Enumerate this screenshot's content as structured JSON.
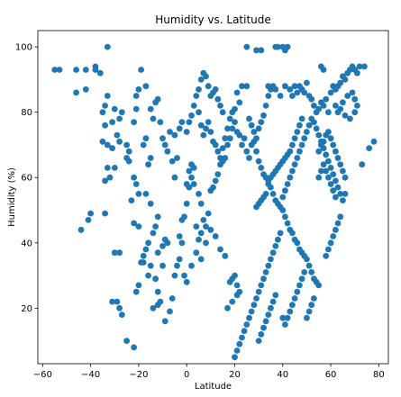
{
  "chart_data": {
    "type": "scatter",
    "title": "Humidity vs. Latitude",
    "xlabel": "Latitude",
    "ylabel": "Humidity (%)",
    "xlim": [
      -62,
      84
    ],
    "ylim": [
      3,
      105
    ],
    "xticks": [
      -60,
      -40,
      -20,
      0,
      20,
      40,
      60,
      80
    ],
    "yticks": [
      20,
      40,
      60,
      80,
      100
    ],
    "grid": false,
    "legend": "none",
    "marker_color": "#1f77b4",
    "points": [
      [
        -55,
        93
      ],
      [
        -53,
        93
      ],
      [
        -46,
        93
      ],
      [
        -42,
        93
      ],
      [
        -38,
        94
      ],
      [
        -38,
        93
      ],
      [
        -36,
        92
      ],
      [
        -33,
        100
      ],
      [
        -46,
        86
      ],
      [
        -42,
        87
      ],
      [
        -35,
        80
      ],
      [
        -34,
        82
      ],
      [
        -33,
        85
      ],
      [
        -34,
        76
      ],
      [
        -35,
        71
      ],
      [
        -33,
        70
      ],
      [
        -31,
        69
      ],
      [
        -32,
        60
      ],
      [
        -34,
        59
      ],
      [
        -33,
        63
      ],
      [
        -30,
        63
      ],
      [
        -29,
        73
      ],
      [
        -28,
        71
      ],
      [
        -28,
        78
      ],
      [
        -31,
        77
      ],
      [
        -30,
        81
      ],
      [
        -27,
        80
      ],
      [
        -25,
        70
      ],
      [
        -24,
        68
      ],
      [
        -22,
        77
      ],
      [
        -21,
        81
      ],
      [
        -20,
        87
      ],
      [
        -21,
        85
      ],
      [
        -19,
        93
      ],
      [
        -17,
        88
      ],
      [
        -15,
        81
      ],
      [
        -14,
        78
      ],
      [
        -13,
        83
      ],
      [
        -12,
        84
      ],
      [
        -11,
        77
      ],
      [
        -10,
        72
      ],
      [
        -9,
        70
      ],
      [
        -8,
        68
      ],
      [
        -7,
        74
      ],
      [
        -5,
        73
      ],
      [
        -3,
        75
      ],
      [
        -2,
        77
      ],
      [
        -4,
        66
      ],
      [
        -6,
        65
      ],
      [
        -5,
        60
      ],
      [
        -22,
        60
      ],
      [
        -21,
        58
      ],
      [
        -20,
        55
      ],
      [
        -23,
        53
      ],
      [
        -22,
        46
      ],
      [
        -20,
        45
      ],
      [
        -24,
        65
      ],
      [
        -25,
        66
      ],
      [
        -18,
        70
      ],
      [
        -17,
        72
      ],
      [
        -15,
        66
      ],
      [
        -16,
        64
      ],
      [
        -44,
        44
      ],
      [
        -41,
        47
      ],
      [
        -40,
        49
      ],
      [
        -34,
        49
      ],
      [
        -30,
        37
      ],
      [
        -28,
        37
      ],
      [
        -31,
        22
      ],
      [
        -29,
        22
      ],
      [
        -28,
        20
      ],
      [
        -27,
        18
      ],
      [
        -25,
        10
      ],
      [
        -22,
        8
      ],
      [
        -21,
        25
      ],
      [
        -20,
        27
      ],
      [
        -19,
        34
      ],
      [
        -18,
        36
      ],
      [
        -17,
        38
      ],
      [
        -16,
        30
      ],
      [
        -15,
        33
      ],
      [
        -13,
        29
      ],
      [
        -12,
        25
      ],
      [
        -14,
        20
      ],
      [
        -12,
        21
      ],
      [
        -11,
        22
      ],
      [
        -9,
        16
      ],
      [
        -7,
        19
      ],
      [
        -6,
        23
      ],
      [
        -5,
        30
      ],
      [
        -4,
        33
      ],
      [
        -3,
        35
      ],
      [
        -2,
        40
      ],
      [
        -3,
        42
      ],
      [
        -12,
        37
      ],
      [
        -10,
        39
      ],
      [
        -9,
        41
      ],
      [
        -8,
        40
      ],
      [
        -10,
        33
      ],
      [
        -13,
        45
      ],
      [
        -12,
        48
      ],
      [
        -14,
        43
      ],
      [
        -16,
        40
      ],
      [
        -18,
        34
      ],
      [
        -15,
        52
      ],
      [
        -17,
        55
      ],
      [
        -2,
        47
      ],
      [
        -1,
        48
      ],
      [
        0,
        52
      ],
      [
        1,
        57
      ],
      [
        0,
        58
      ],
      [
        2,
        60
      ],
      [
        3,
        63
      ],
      [
        2,
        64
      ],
      [
        1,
        62
      ],
      [
        3,
        58
      ],
      [
        5,
        55
      ],
      [
        6,
        52
      ],
      [
        7,
        47
      ],
      [
        8,
        45
      ],
      [
        4,
        45
      ],
      [
        5,
        41
      ],
      [
        6,
        43
      ],
      [
        9,
        49
      ],
      [
        10,
        56
      ],
      [
        11,
        57
      ],
      [
        12,
        59
      ],
      [
        13,
        61
      ],
      [
        14,
        64
      ],
      [
        15,
        65
      ],
      [
        16,
        66
      ],
      [
        17,
        70
      ],
      [
        18,
        72
      ],
      [
        19,
        75
      ],
      [
        20,
        77
      ],
      [
        21,
        74
      ],
      [
        22,
        73
      ],
      [
        23,
        70
      ],
      [
        24,
        72
      ],
      [
        25,
        68
      ],
      [
        26,
        66
      ],
      [
        27,
        70
      ],
      [
        28,
        71
      ],
      [
        29,
        72
      ],
      [
        30,
        75
      ],
      [
        31,
        77
      ],
      [
        32,
        79
      ],
      [
        33,
        82
      ],
      [
        34,
        85
      ],
      [
        35,
        87
      ],
      [
        36,
        88
      ],
      [
        37,
        100
      ],
      [
        38,
        100
      ],
      [
        40,
        100
      ],
      [
        41,
        99
      ],
      [
        42,
        100
      ],
      [
        25,
        100
      ],
      [
        29,
        99
      ],
      [
        31,
        99
      ],
      [
        34,
        88
      ],
      [
        37,
        87
      ],
      [
        39,
        85
      ],
      [
        41,
        88
      ],
      [
        43,
        87
      ],
      [
        44,
        85
      ],
      [
        45,
        88
      ],
      [
        46,
        86
      ],
      [
        47,
        88
      ],
      [
        48,
        87
      ],
      [
        49,
        86
      ],
      [
        50,
        89
      ],
      [
        51,
        85
      ],
      [
        52,
        84
      ],
      [
        53,
        82
      ],
      [
        54,
        80
      ],
      [
        55,
        81
      ],
      [
        56,
        83
      ],
      [
        57,
        82
      ],
      [
        58,
        84
      ],
      [
        59,
        80
      ],
      [
        60,
        86
      ],
      [
        61,
        88
      ],
      [
        62,
        87
      ],
      [
        63,
        88
      ],
      [
        64,
        89
      ],
      [
        65,
        91
      ],
      [
        66,
        90
      ],
      [
        67,
        92
      ],
      [
        68,
        93
      ],
      [
        69,
        94
      ],
      [
        70,
        93
      ],
      [
        71,
        92
      ],
      [
        72,
        94
      ],
      [
        56,
        94
      ],
      [
        57,
        93
      ],
      [
        74,
        94
      ],
      [
        76,
        69
      ],
      [
        78,
        71
      ],
      [
        73,
        64
      ],
      [
        70,
        84
      ],
      [
        69,
        86
      ],
      [
        67,
        85
      ],
      [
        65,
        83
      ],
      [
        64,
        81
      ],
      [
        63,
        80
      ],
      [
        62,
        82
      ],
      [
        66,
        79
      ],
      [
        68,
        78
      ],
      [
        70,
        80
      ],
      [
        71,
        82
      ],
      [
        0,
        74
      ],
      [
        1,
        77
      ],
      [
        2,
        79
      ],
      [
        3,
        82
      ],
      [
        4,
        85
      ],
      [
        5,
        87
      ],
      [
        6,
        90
      ],
      [
        7,
        92
      ],
      [
        8,
        91
      ],
      [
        9,
        88
      ],
      [
        10,
        85
      ],
      [
        11,
        86
      ],
      [
        12,
        87
      ],
      [
        13,
        84
      ],
      [
        14,
        82
      ],
      [
        15,
        80
      ],
      [
        5,
        80
      ],
      [
        6,
        76
      ],
      [
        7,
        73
      ],
      [
        8,
        75
      ],
      [
        9,
        77
      ],
      [
        10,
        74
      ],
      [
        11,
        71
      ],
      [
        12,
        70
      ],
      [
        13,
        68
      ],
      [
        14,
        66
      ],
      [
        15,
        69
      ],
      [
        16,
        72
      ],
      [
        17,
        75
      ],
      [
        18,
        78
      ],
      [
        19,
        80
      ],
      [
        20,
        81
      ],
      [
        22,
        83
      ],
      [
        21,
        86
      ],
      [
        23,
        88
      ],
      [
        25,
        88
      ],
      [
        26,
        78
      ],
      [
        27,
        76
      ],
      [
        28,
        74
      ],
      [
        29,
        68
      ],
      [
        30,
        65
      ],
      [
        31,
        63
      ],
      [
        32,
        61
      ],
      [
        33,
        60
      ],
      [
        34,
        58
      ],
      [
        35,
        57
      ],
      [
        36,
        55
      ],
      [
        37,
        53
      ],
      [
        38,
        52
      ],
      [
        39,
        51
      ],
      [
        40,
        50
      ],
      [
        41,
        48
      ],
      [
        42,
        46
      ],
      [
        43,
        44
      ],
      [
        44,
        43
      ],
      [
        45,
        41
      ],
      [
        46,
        40
      ],
      [
        47,
        38
      ],
      [
        48,
        37
      ],
      [
        49,
        36
      ],
      [
        50,
        35
      ],
      [
        51,
        33
      ],
      [
        52,
        31
      ],
      [
        53,
        29
      ],
      [
        54,
        28
      ],
      [
        55,
        27
      ],
      [
        40,
        54
      ],
      [
        41,
        56
      ],
      [
        42,
        58
      ],
      [
        43,
        60
      ],
      [
        44,
        62
      ],
      [
        45,
        64
      ],
      [
        46,
        66
      ],
      [
        47,
        68
      ],
      [
        48,
        70
      ],
      [
        49,
        72
      ],
      [
        50,
        74
      ],
      [
        51,
        76
      ],
      [
        52,
        78
      ],
      [
        53,
        77
      ],
      [
        54,
        75
      ],
      [
        55,
        73
      ],
      [
        56,
        71
      ],
      [
        57,
        69
      ],
      [
        58,
        67
      ],
      [
        59,
        65
      ],
      [
        60,
        63
      ],
      [
        61,
        61
      ],
      [
        62,
        59
      ],
      [
        63,
        57
      ],
      [
        64,
        55
      ],
      [
        65,
        53
      ],
      [
        66,
        55
      ],
      [
        64,
        48
      ],
      [
        63,
        46
      ],
      [
        62,
        44
      ],
      [
        61,
        42
      ],
      [
        60,
        40
      ],
      [
        59,
        38
      ],
      [
        58,
        36
      ],
      [
        20,
        5
      ],
      [
        21,
        7
      ],
      [
        22,
        9
      ],
      [
        23,
        11
      ],
      [
        24,
        13
      ],
      [
        25,
        15
      ],
      [
        26,
        17
      ],
      [
        27,
        19
      ],
      [
        28,
        21
      ],
      [
        29,
        23
      ],
      [
        30,
        25
      ],
      [
        31,
        27
      ],
      [
        32,
        29
      ],
      [
        33,
        31
      ],
      [
        34,
        33
      ],
      [
        35,
        35
      ],
      [
        36,
        37
      ],
      [
        37,
        39
      ],
      [
        38,
        41
      ],
      [
        39,
        43
      ],
      [
        40,
        17
      ],
      [
        41,
        15
      ],
      [
        42,
        17
      ],
      [
        43,
        19
      ],
      [
        44,
        21
      ],
      [
        45,
        23
      ],
      [
        46,
        25
      ],
      [
        47,
        27
      ],
      [
        48,
        29
      ],
      [
        49,
        31
      ],
      [
        50,
        17
      ],
      [
        51,
        19
      ],
      [
        52,
        21
      ],
      [
        53,
        23
      ],
      [
        30,
        10
      ],
      [
        31,
        12
      ],
      [
        32,
        14
      ],
      [
        33,
        16
      ],
      [
        34,
        18
      ],
      [
        35,
        20
      ],
      [
        36,
        22
      ],
      [
        37,
        24
      ],
      [
        18,
        28
      ],
      [
        19,
        29
      ],
      [
        20,
        30
      ],
      [
        21,
        27
      ],
      [
        22,
        25
      ],
      [
        17,
        20
      ],
      [
        19,
        22
      ],
      [
        21,
        24
      ],
      [
        2,
        33
      ],
      [
        4,
        37
      ],
      [
        6,
        35
      ],
      [
        8,
        40
      ],
      [
        10,
        44
      ],
      [
        12,
        42
      ],
      [
        14,
        38
      ],
      [
        16,
        36
      ],
      [
        0,
        28
      ],
      [
        -1,
        30
      ],
      [
        55,
        60
      ],
      [
        56,
        62
      ],
      [
        57,
        64
      ],
      [
        58,
        62
      ],
      [
        59,
        60
      ],
      [
        60,
        58
      ],
      [
        61,
        56
      ],
      [
        62,
        54
      ],
      [
        55,
        68
      ],
      [
        56,
        70
      ],
      [
        57,
        71
      ],
      [
        58,
        73
      ],
      [
        59,
        74
      ],
      [
        60,
        72
      ],
      [
        61,
        70
      ],
      [
        62,
        68
      ],
      [
        63,
        66
      ],
      [
        64,
        64
      ],
      [
        65,
        62
      ],
      [
        66,
        60
      ],
      [
        44,
        70
      ],
      [
        45,
        72
      ],
      [
        46,
        74
      ],
      [
        47,
        76
      ],
      [
        48,
        78
      ],
      [
        43,
        68
      ],
      [
        42,
        67
      ],
      [
        41,
        66
      ],
      [
        40,
        65
      ],
      [
        39,
        64
      ],
      [
        38,
        63
      ],
      [
        37,
        62
      ],
      [
        36,
        61
      ],
      [
        35,
        60
      ],
      [
        34,
        59
      ],
      [
        33,
        55
      ],
      [
        32,
        54
      ],
      [
        31,
        53
      ],
      [
        30,
        52
      ],
      [
        29,
        51
      ]
    ]
  }
}
